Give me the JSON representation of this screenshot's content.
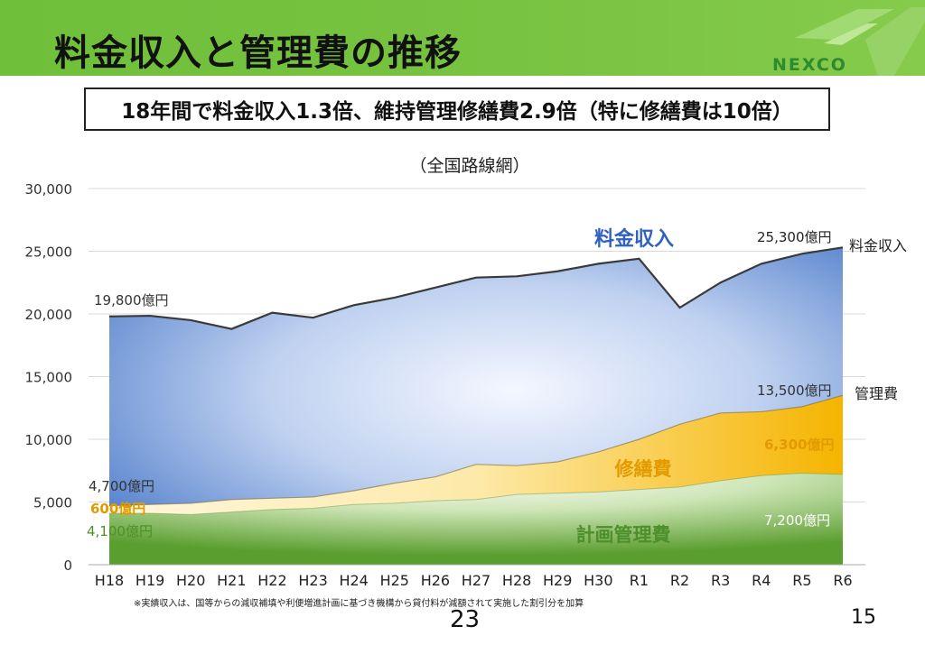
{
  "slide": {
    "title": "料金収入と管理費の推移",
    "logo_text": "NEXCO",
    "subtitle": "18年間で料金収入1.3倍、維持管理修繕費2.9倍（特に修繕費は10倍）",
    "footnote": "※実績収入は、国等からの減収補填や利便増進計画に基づき機構から貸付料が減額されて実施した割引分を加算",
    "page_center": "23",
    "page_right": "15"
  },
  "colors": {
    "header_green": "#76c23f",
    "revenue_blue": "#3d6fc4",
    "repair_gold": "#f5b400",
    "mgmt_green": "#5a9e2f",
    "revenue_label": "#2f62c0",
    "repair_label": "#e39a00",
    "mgmt_label": "#4d8f2a"
  },
  "chart_data": {
    "type": "area",
    "title": "（全国路線網）",
    "xlabel": "",
    "ylabel": "",
    "ylim": [
      0,
      30000
    ],
    "yticks": [
      "0",
      "5,000",
      "10,000",
      "15,000",
      "20,000",
      "25,000",
      "30,000"
    ],
    "ytick_values": [
      0,
      5000,
      10000,
      15000,
      20000,
      25000,
      30000
    ],
    "grid": true,
    "categories": [
      "H18",
      "H19",
      "H20",
      "H21",
      "H22",
      "H23",
      "H24",
      "H25",
      "H26",
      "H27",
      "H28",
      "H29",
      "H30",
      "R1",
      "R2",
      "R3",
      "R4",
      "R5",
      "R6"
    ],
    "series": [
      {
        "name": "計画管理費",
        "values": [
          4100,
          4100,
          4000,
          4200,
          4400,
          4500,
          4800,
          4900,
          5100,
          5200,
          5600,
          5700,
          5800,
          6000,
          6200,
          6700,
          7100,
          7300,
          7200
        ]
      },
      {
        "name": "管理費",
        "values": [
          4700,
          4800,
          4900,
          5200,
          5300,
          5400,
          5900,
          6500,
          7000,
          8000,
          7900,
          8200,
          9000,
          10000,
          11200,
          12100,
          12200,
          12600,
          13500
        ]
      },
      {
        "name": "料金収入",
        "values": [
          19800,
          19850,
          19500,
          18800,
          20100,
          19700,
          20700,
          21300,
          22100,
          22900,
          23000,
          23400,
          24000,
          24400,
          20500,
          22500,
          24000,
          24800,
          25300
        ]
      }
    ],
    "area_labels": {
      "revenue": "料金収入",
      "repair": "修繕費",
      "mgmt": "計画管理費"
    },
    "annotations": {
      "rev_start": "19,800億円",
      "rev_end": "25,300億円",
      "total_start": "4,700億円",
      "repair_start": "600億円",
      "mgmt_start": "4,100億円",
      "total_end": "13,500億円",
      "repair_end": "6,300億円",
      "mgmt_end": "7,200億円",
      "right_revenue": "料金収入",
      "right_total": "管理費"
    }
  }
}
